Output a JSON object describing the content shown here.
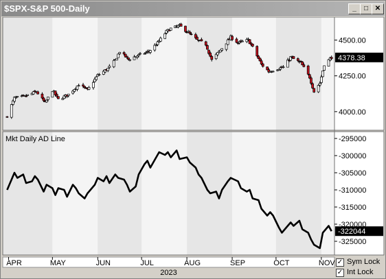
{
  "window": {
    "title": "$SPX-S&P 500-Daily",
    "buttons": {
      "minimize": "_",
      "maximize": "□",
      "close": "✕"
    }
  },
  "colors": {
    "up": "#ffffff",
    "down": "#c0121e",
    "line": "#000000",
    "plotBg": "#e6e6e6",
    "plotBgLight": "#f4f4f4",
    "lastLabelBg": "#000000"
  },
  "chart_data": [
    {
      "type": "candlestick",
      "title": "$SPX-S&P 500-Daily",
      "ylim": [
        3870,
        4660
      ],
      "yticks": [
        {
          "value": 4500,
          "label": "4500.00"
        },
        {
          "value": 4250,
          "label": "4250.00"
        },
        {
          "value": 4000,
          "label": "4000.00"
        }
      ],
      "last_value_label": "4378.38",
      "last_value": 4378.38,
      "close_path": [
        [
          "2023-03-31",
          3970
        ],
        [
          "2023-04-05",
          4095
        ],
        [
          "2023-04-12",
          4105
        ],
        [
          "2023-04-20",
          4140
        ],
        [
          "2023-04-26",
          4060
        ],
        [
          "2023-05-01",
          4150
        ],
        [
          "2023-05-05",
          4085
        ],
        [
          "2023-05-12",
          4120
        ],
        [
          "2023-05-19",
          4190
        ],
        [
          "2023-05-25",
          4150
        ],
        [
          "2023-06-01",
          4255
        ],
        [
          "2023-06-08",
          4300
        ],
        [
          "2023-06-13",
          4360
        ],
        [
          "2023-06-16",
          4420
        ],
        [
          "2023-06-22",
          4365
        ],
        [
          "2023-06-28",
          4390
        ],
        [
          "2023-07-06",
          4420
        ],
        [
          "2023-07-12",
          4480
        ],
        [
          "2023-07-18",
          4560
        ],
        [
          "2023-07-21",
          4580
        ],
        [
          "2023-07-27",
          4600
        ],
        [
          "2023-08-01",
          4560
        ],
        [
          "2023-08-08",
          4500
        ],
        [
          "2023-08-14",
          4470
        ],
        [
          "2023-08-18",
          4360
        ],
        [
          "2023-08-24",
          4430
        ],
        [
          "2023-08-31",
          4520
        ],
        [
          "2023-09-05",
          4480
        ],
        [
          "2023-09-12",
          4500
        ],
        [
          "2023-09-15",
          4450
        ],
        [
          "2023-09-21",
          4330
        ],
        [
          "2023-09-26",
          4280
        ],
        [
          "2023-10-02",
          4300
        ],
        [
          "2023-10-06",
          4310
        ],
        [
          "2023-10-11",
          4380
        ],
        [
          "2023-10-18",
          4340
        ],
        [
          "2023-10-24",
          4240
        ],
        [
          "2023-10-27",
          4140
        ],
        [
          "2023-10-31",
          4200
        ],
        [
          "2023-11-03",
          4330
        ],
        [
          "2023-11-08",
          4380
        ]
      ]
    },
    {
      "type": "line",
      "title": "Mkt Daily AD Line",
      "ylim": [
        -329000,
        -293000
      ],
      "yticks": [
        {
          "value": -295000,
          "label": "-295000"
        },
        {
          "value": -300000,
          "label": "-300000"
        },
        {
          "value": -305000,
          "label": "-305000"
        },
        {
          "value": -310000,
          "label": "-310000"
        },
        {
          "value": -315000,
          "label": "-315000"
        },
        {
          "value": -320000,
          "label": "-320000"
        },
        {
          "value": -325000,
          "label": "-325000"
        }
      ],
      "last_value_label": "-322044",
      "last_value": -322044,
      "series": [
        [
          "2023-03-31",
          -310000
        ],
        [
          "2023-04-03",
          -307000
        ],
        [
          "2023-04-05",
          -305000
        ],
        [
          "2023-04-07",
          -306500
        ],
        [
          "2023-04-11",
          -305500
        ],
        [
          "2023-04-13",
          -308000
        ],
        [
          "2023-04-17",
          -307500
        ],
        [
          "2023-04-19",
          -306000
        ],
        [
          "2023-04-21",
          -307000
        ],
        [
          "2023-04-25",
          -310500
        ],
        [
          "2023-04-27",
          -308500
        ],
        [
          "2023-05-01",
          -309500
        ],
        [
          "2023-05-03",
          -311500
        ],
        [
          "2023-05-05",
          -309500
        ],
        [
          "2023-05-09",
          -310000
        ],
        [
          "2023-05-11",
          -312000
        ],
        [
          "2023-05-15",
          -308500
        ],
        [
          "2023-05-17",
          -309500
        ],
        [
          "2023-05-19",
          -311000
        ],
        [
          "2023-05-23",
          -312500
        ],
        [
          "2023-05-25",
          -311000
        ],
        [
          "2023-05-30",
          -308500
        ],
        [
          "2023-06-01",
          -306500
        ],
        [
          "2023-06-05",
          -307500
        ],
        [
          "2023-06-07",
          -306000
        ],
        [
          "2023-06-09",
          -308000
        ],
        [
          "2023-06-13",
          -305500
        ],
        [
          "2023-06-15",
          -306500
        ],
        [
          "2023-06-19",
          -307000
        ],
        [
          "2023-06-21",
          -308500
        ],
        [
          "2023-06-23",
          -310500
        ],
        [
          "2023-06-27",
          -309000
        ],
        [
          "2023-06-29",
          -305500
        ],
        [
          "2023-07-03",
          -302500
        ],
        [
          "2023-07-05",
          -301500
        ],
        [
          "2023-07-07",
          -303500
        ],
        [
          "2023-07-11",
          -300500
        ],
        [
          "2023-07-13",
          -299000
        ],
        [
          "2023-07-17",
          -299800
        ],
        [
          "2023-07-19",
          -299000
        ],
        [
          "2023-07-21",
          -300500
        ],
        [
          "2023-07-25",
          -298500
        ],
        [
          "2023-07-27",
          -301000
        ],
        [
          "2023-08-01",
          -300500
        ],
        [
          "2023-08-03",
          -302000
        ],
        [
          "2023-08-07",
          -303500
        ],
        [
          "2023-08-09",
          -305500
        ],
        [
          "2023-08-11",
          -306500
        ],
        [
          "2023-08-15",
          -310000
        ],
        [
          "2023-08-17",
          -311000
        ],
        [
          "2023-08-21",
          -310500
        ],
        [
          "2023-08-23",
          -312500
        ],
        [
          "2023-08-25",
          -310000
        ],
        [
          "2023-08-29",
          -307500
        ],
        [
          "2023-08-31",
          -306500
        ],
        [
          "2023-09-05",
          -307500
        ],
        [
          "2023-09-07",
          -309500
        ],
        [
          "2023-09-11",
          -310500
        ],
        [
          "2023-09-13",
          -310000
        ],
        [
          "2023-09-15",
          -312500
        ],
        [
          "2023-09-19",
          -313000
        ],
        [
          "2023-09-21",
          -315500
        ],
        [
          "2023-09-25",
          -317500
        ],
        [
          "2023-09-27",
          -316500
        ],
        [
          "2023-09-29",
          -317500
        ],
        [
          "2023-10-03",
          -321000
        ],
        [
          "2023-10-05",
          -322500
        ],
        [
          "2023-10-09",
          -320500
        ],
        [
          "2023-10-11",
          -319500
        ],
        [
          "2023-10-13",
          -320500
        ],
        [
          "2023-10-17",
          -319000
        ],
        [
          "2023-10-19",
          -321500
        ],
        [
          "2023-10-23",
          -322500
        ],
        [
          "2023-10-25",
          -324500
        ],
        [
          "2023-10-27",
          -326000
        ],
        [
          "2023-10-31",
          -327000
        ],
        [
          "2023-11-02",
          -322500
        ],
        [
          "2023-11-06",
          -320500
        ],
        [
          "2023-11-08",
          -322044
        ]
      ]
    }
  ],
  "time_axis": {
    "months": [
      {
        "label": "APR",
        "date": "2023-04-01"
      },
      {
        "label": "MAY",
        "date": "2023-05-01"
      },
      {
        "label": "JUN",
        "date": "2023-06-01"
      },
      {
        "label": "JUL",
        "date": "2023-07-01"
      },
      {
        "label": "AUG",
        "date": "2023-08-01"
      },
      {
        "label": "SEP",
        "date": "2023-09-01"
      },
      {
        "label": "OCT",
        "date": "2023-10-01"
      },
      {
        "label": "NOV",
        "date": "2023-11-01"
      }
    ],
    "range": [
      "2023-03-28",
      "2023-11-10"
    ],
    "year_label": "2023"
  },
  "panels": {
    "lower_title": "Mkt Daily AD Line"
  },
  "controls": {
    "sym_lock": {
      "label": "Sym Lock",
      "checked": true,
      "mark": "✓"
    },
    "int_lock": {
      "label": "Int Lock",
      "checked": true,
      "mark": "✓"
    }
  }
}
